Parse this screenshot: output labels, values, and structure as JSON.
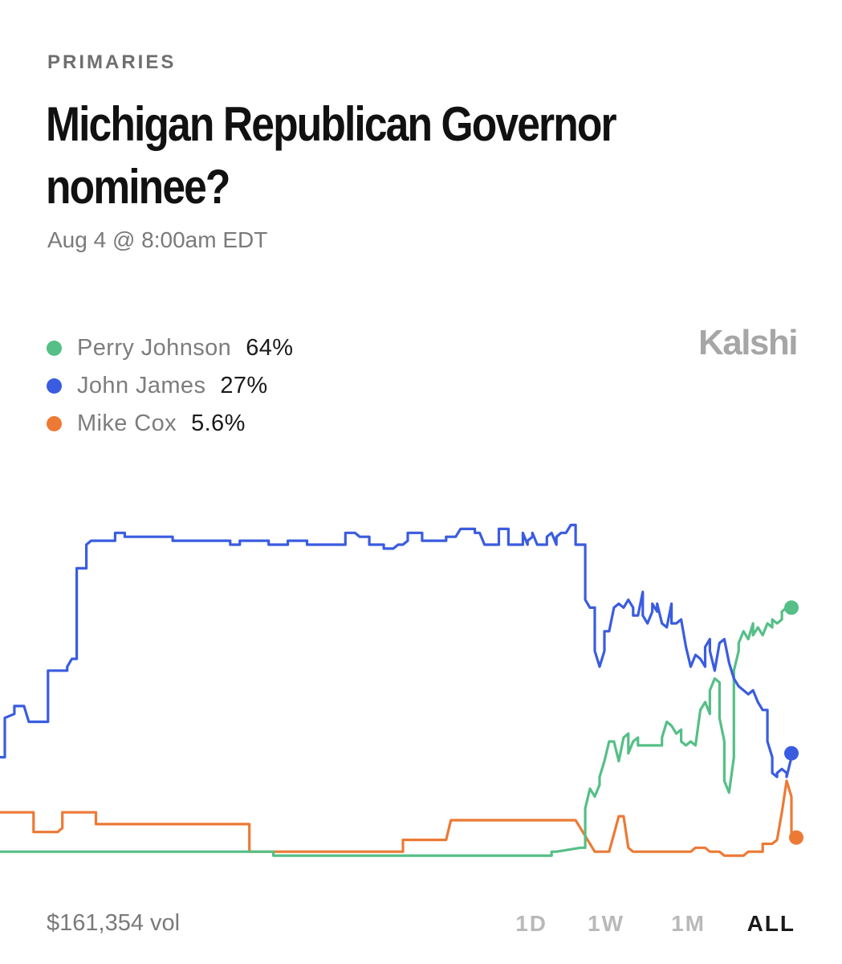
{
  "header": {
    "category": "PRIMARIES",
    "title": "Michigan Republican Governor nominee?",
    "date": "Aug 4 @ 8:00am EDT",
    "brand": "Kalshi"
  },
  "legend": [
    {
      "name": "Perry Johnson",
      "value": "64%",
      "color": "#55bf87"
    },
    {
      "name": "John James",
      "value": "27%",
      "color": "#3a5ce0"
    },
    {
      "name": "Mike Cox",
      "value": "5.6%",
      "color": "#ec7a35"
    }
  ],
  "footer": {
    "volume": "$161,354 vol",
    "ranges": [
      "1D",
      "1W",
      "1M",
      "ALL"
    ],
    "active_range": "ALL"
  },
  "chart_data": {
    "type": "line",
    "ylim": [
      0,
      100
    ],
    "grid": false,
    "legend_placement": "top-left",
    "series": [
      {
        "name": "John James",
        "color": "#3a5ce0",
        "points": [
          [
            0,
            26
          ],
          [
            1,
            26
          ],
          [
            1,
            36
          ],
          [
            3,
            37
          ],
          [
            3,
            39
          ],
          [
            5,
            39
          ],
          [
            6,
            35
          ],
          [
            10,
            35
          ],
          [
            10,
            48
          ],
          [
            14,
            48
          ],
          [
            14,
            49
          ],
          [
            15,
            51
          ],
          [
            16,
            51
          ],
          [
            16,
            74
          ],
          [
            18,
            74
          ],
          [
            18,
            80
          ],
          [
            19,
            81
          ],
          [
            24,
            81
          ],
          [
            24,
            83
          ],
          [
            26,
            83
          ],
          [
            26,
            82
          ],
          [
            36,
            82
          ],
          [
            36,
            81
          ],
          [
            40,
            81
          ],
          [
            40,
            81
          ],
          [
            48,
            81
          ],
          [
            48,
            80
          ],
          [
            50,
            80
          ],
          [
            50,
            81
          ],
          [
            56,
            81
          ],
          [
            56,
            80
          ],
          [
            60,
            80
          ],
          [
            60,
            81
          ],
          [
            64,
            81
          ],
          [
            64,
            80
          ],
          [
            72,
            80
          ],
          [
            72,
            83
          ],
          [
            74,
            83
          ],
          [
            75,
            82
          ],
          [
            77,
            82
          ],
          [
            77,
            80
          ],
          [
            80,
            80
          ],
          [
            80,
            79
          ],
          [
            82,
            79
          ],
          [
            83,
            80
          ],
          [
            84,
            80
          ],
          [
            85,
            81
          ],
          [
            85,
            83
          ],
          [
            88,
            83
          ],
          [
            88,
            81
          ],
          [
            91,
            81
          ],
          [
            93,
            81
          ],
          [
            93,
            82
          ],
          [
            95,
            82
          ],
          [
            96,
            84
          ],
          [
            97,
            84
          ],
          [
            98,
            84
          ],
          [
            99,
            84
          ],
          [
            99,
            83
          ],
          [
            100,
            83
          ],
          [
            101,
            80
          ],
          [
            102,
            80
          ],
          [
            104,
            80
          ],
          [
            104,
            83
          ],
          [
            104,
            84
          ],
          [
            106,
            84
          ],
          [
            106,
            80
          ],
          [
            109,
            80
          ],
          [
            109,
            83
          ],
          [
            110,
            80
          ],
          [
            110,
            81
          ],
          [
            111,
            82
          ],
          [
            111,
            83
          ],
          [
            112,
            80
          ],
          [
            113,
            80
          ],
          [
            114,
            80
          ],
          [
            114,
            82
          ],
          [
            115,
            83
          ],
          [
            116,
            80
          ],
          [
            116,
            82
          ],
          [
            117,
            83
          ],
          [
            118,
            83
          ],
          [
            119,
            85
          ],
          [
            120,
            85
          ],
          [
            120,
            80
          ],
          [
            122,
            80
          ],
          [
            122,
            66
          ],
          [
            123,
            64
          ],
          [
            124,
            64
          ],
          [
            124,
            53
          ],
          [
            125,
            49
          ],
          [
            126,
            53
          ],
          [
            126,
            58
          ],
          [
            127,
            58
          ],
          [
            128,
            64
          ],
          [
            129,
            65
          ],
          [
            130,
            64
          ],
          [
            131,
            66
          ],
          [
            132,
            64
          ],
          [
            132,
            62
          ],
          [
            133,
            62
          ],
          [
            134,
            68
          ],
          [
            134,
            62
          ],
          [
            135,
            60
          ],
          [
            136,
            63
          ],
          [
            136,
            65
          ],
          [
            137,
            63
          ],
          [
            137,
            65
          ],
          [
            138,
            60
          ],
          [
            139,
            59
          ],
          [
            140,
            65
          ],
          [
            140,
            60
          ],
          [
            141,
            60
          ],
          [
            142,
            61
          ],
          [
            143,
            54
          ],
          [
            144,
            49
          ],
          [
            145,
            52
          ],
          [
            146,
            51
          ],
          [
            147,
            49
          ],
          [
            147,
            54
          ],
          [
            148,
            56
          ],
          [
            148,
            53
          ],
          [
            149,
            48
          ],
          [
            150,
            55
          ],
          [
            151,
            56
          ],
          [
            152,
            50
          ],
          [
            153,
            46
          ],
          [
            154,
            44
          ],
          [
            155,
            43
          ],
          [
            156,
            42
          ],
          [
            157,
            43
          ],
          [
            158,
            40
          ],
          [
            159,
            38
          ],
          [
            160,
            38
          ],
          [
            160,
            30
          ],
          [
            161,
            26
          ],
          [
            161,
            22
          ],
          [
            162,
            21
          ],
          [
            162,
            22
          ],
          [
            163,
            23
          ],
          [
            164,
            22
          ],
          [
            164,
            21
          ],
          [
            165,
            26
          ],
          [
            165,
            27
          ]
        ]
      },
      {
        "name": "Perry Johnson",
        "color": "#55bf87",
        "points": [
          [
            0,
            2
          ],
          [
            1,
            2
          ],
          [
            57,
            2
          ],
          [
            57,
            1
          ],
          [
            75,
            1
          ],
          [
            115,
            1
          ],
          [
            115,
            2
          ],
          [
            116,
            2
          ],
          [
            121,
            3
          ],
          [
            122,
            3
          ],
          [
            122,
            13
          ],
          [
            123,
            18
          ],
          [
            124,
            16
          ],
          [
            125,
            19
          ],
          [
            125,
            21
          ],
          [
            126,
            25
          ],
          [
            127,
            30
          ],
          [
            128,
            30
          ],
          [
            129,
            25
          ],
          [
            130,
            31
          ],
          [
            131,
            32
          ],
          [
            131,
            27
          ],
          [
            132,
            30
          ],
          [
            133,
            31
          ],
          [
            133,
            29
          ],
          [
            134,
            29
          ],
          [
            136,
            29
          ],
          [
            137,
            29
          ],
          [
            138,
            29
          ],
          [
            138,
            31
          ],
          [
            139,
            35
          ],
          [
            140,
            34
          ],
          [
            141,
            32
          ],
          [
            142,
            33
          ],
          [
            142,
            30
          ],
          [
            143,
            29
          ],
          [
            144,
            30
          ],
          [
            145,
            29
          ],
          [
            146,
            38
          ],
          [
            147,
            40
          ],
          [
            148,
            37
          ],
          [
            148,
            43
          ],
          [
            149,
            46
          ],
          [
            150,
            45
          ],
          [
            150,
            36
          ],
          [
            151,
            30
          ],
          [
            151,
            20
          ],
          [
            152,
            17
          ],
          [
            153,
            26
          ],
          [
            153,
            48
          ],
          [
            154,
            53
          ],
          [
            154,
            55
          ],
          [
            155,
            58
          ],
          [
            155,
            58
          ],
          [
            156,
            56
          ],
          [
            157,
            60
          ],
          [
            157,
            57
          ],
          [
            158,
            59
          ],
          [
            159,
            57
          ],
          [
            160,
            60
          ],
          [
            161,
            59
          ],
          [
            161,
            61
          ],
          [
            162,
            60
          ],
          [
            163,
            61
          ],
          [
            163,
            63
          ],
          [
            164,
            64
          ],
          [
            165,
            64
          ]
        ]
      },
      {
        "name": "Mike Cox",
        "color": "#ec7a35",
        "points": [
          [
            0,
            12
          ],
          [
            5,
            12
          ],
          [
            7,
            12
          ],
          [
            7,
            7
          ],
          [
            12,
            7
          ],
          [
            13,
            8
          ],
          [
            13,
            12
          ],
          [
            18,
            12
          ],
          [
            20,
            12
          ],
          [
            20,
            9
          ],
          [
            30,
            9
          ],
          [
            46,
            9
          ],
          [
            52,
            9
          ],
          [
            52,
            2
          ],
          [
            53,
            2
          ],
          [
            80,
            2
          ],
          [
            84,
            2
          ],
          [
            84,
            5
          ],
          [
            86,
            5
          ],
          [
            92,
            5
          ],
          [
            93,
            5
          ],
          [
            94,
            10
          ],
          [
            96,
            10
          ],
          [
            104,
            10
          ],
          [
            110,
            10
          ],
          [
            112,
            10
          ],
          [
            116,
            10
          ],
          [
            120,
            10
          ],
          [
            121,
            8
          ],
          [
            124,
            2
          ],
          [
            126,
            2
          ],
          [
            127,
            2
          ],
          [
            129,
            11
          ],
          [
            130,
            11
          ],
          [
            131,
            3
          ],
          [
            132,
            2
          ],
          [
            134,
            2
          ],
          [
            135,
            2
          ],
          [
            136,
            2
          ],
          [
            140,
            2
          ],
          [
            144,
            2
          ],
          [
            145,
            3
          ],
          [
            147,
            3
          ],
          [
            148,
            2
          ],
          [
            150,
            2
          ],
          [
            151,
            1
          ],
          [
            155,
            1
          ],
          [
            156,
            2
          ],
          [
            159,
            2
          ],
          [
            159,
            4
          ],
          [
            161,
            4
          ],
          [
            162,
            5
          ],
          [
            163,
            12
          ],
          [
            164,
            20
          ],
          [
            165,
            16
          ],
          [
            165,
            6
          ],
          [
            166,
            7
          ],
          [
            166,
            5.6
          ]
        ]
      }
    ]
  }
}
